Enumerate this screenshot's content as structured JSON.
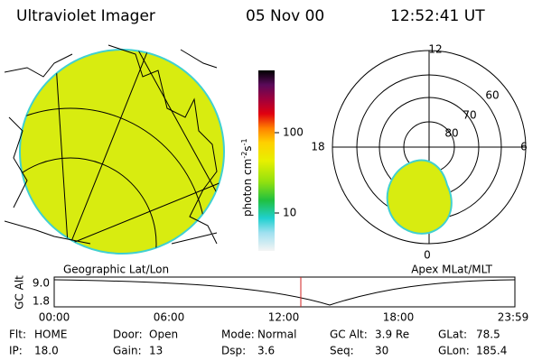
{
  "header": {
    "title": "Ultraviolet Imager",
    "date": "05 Nov 00",
    "time": "12:52:41 UT"
  },
  "colorbar": {
    "label": [
      "photon cm",
      "-2",
      "s",
      "-1"
    ],
    "ticks": [
      "100",
      "10"
    ]
  },
  "geo_panel": {
    "label": "Geographic Lat/Lon"
  },
  "polar_panel": {
    "label": "Apex MLat/MLT",
    "mlt_labels": [
      "12",
      "18",
      "6",
      "0"
    ],
    "lat_labels": [
      "60",
      "70",
      "80"
    ]
  },
  "alt_plot": {
    "ylabel": "GC Alt",
    "yticks": [
      "9.0",
      "1.8"
    ],
    "xticks": [
      "00:00",
      "06:00",
      "12:00",
      "18:00",
      "23:59"
    ]
  },
  "status": [
    [
      [
        "Flt:",
        "HOME"
      ],
      [
        "Door:",
        "Open"
      ],
      [
        "Mode:",
        "Normal"
      ],
      [
        "GC Alt:",
        "3.9 Re"
      ],
      [
        "GLat:",
        "78.5"
      ]
    ],
    [
      [
        "IP:",
        "18.0"
      ],
      [
        "Gain:",
        "13"
      ],
      [
        "Dsp:",
        "3.6"
      ],
      [
        "Seq:",
        "30"
      ],
      [
        "GLon:",
        "185.4"
      ]
    ]
  ]
}
